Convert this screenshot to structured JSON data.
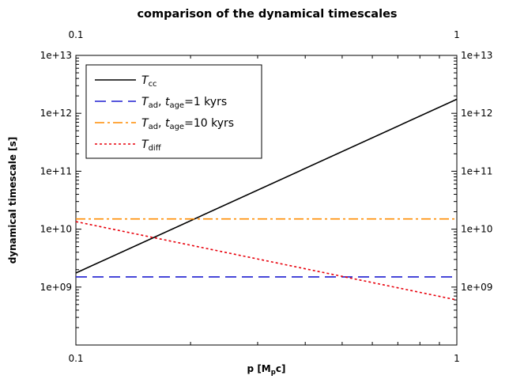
{
  "chart_data": {
    "type": "line",
    "title": "comparison of the dynamical timescales",
    "xlabel": "p [M",
    "xlabel_sub": "p",
    "xlabel_end": "c]",
    "ylabel": "dynamical timescale [s]",
    "xscale": "log",
    "yscale": "log",
    "xlim": [
      0.1,
      1
    ],
    "ylim": [
      100000000.0,
      10000000000000.0
    ],
    "x_ticks": [
      "0.1",
      "1"
    ],
    "x2_ticks": [
      "0.1",
      "1"
    ],
    "y_ticks": [
      "1e+09",
      "1e+10",
      "1e+11",
      "1e+12",
      "1e+13"
    ],
    "grid": false,
    "legend_position": "top-left",
    "series": [
      {
        "name": "T_cc",
        "label_parts": [
          [
            "T",
            "it"
          ],
          [
            "cc",
            "sub"
          ]
        ],
        "color": "#000000",
        "dash": "",
        "x": [
          0.1,
          1
        ],
        "y": [
          1750000000.0,
          1750000000000.0
        ]
      },
      {
        "name": "T_ad, t_age=1 kyrs",
        "label_parts": [
          [
            "T",
            "it"
          ],
          [
            "ad",
            "sub"
          ],
          [
            ", ",
            "n"
          ],
          [
            "t",
            "it"
          ],
          [
            "age",
            "sub"
          ],
          [
            "=1 kyrs",
            "n"
          ]
        ],
        "color": "#1f1fd0",
        "dash": "14,7",
        "x": [
          0.1,
          1
        ],
        "y": [
          1500000000.0,
          1500000000.0
        ]
      },
      {
        "name": "T_ad, t_age=10 kyrs",
        "label_parts": [
          [
            "T",
            "it"
          ],
          [
            "ad",
            "sub"
          ],
          [
            ", ",
            "n"
          ],
          [
            "t",
            "it"
          ],
          [
            "age",
            "sub"
          ],
          [
            "=10 kyrs",
            "n"
          ]
        ],
        "color": "#ff8c00",
        "dash": "12,4,3,4",
        "x": [
          0.1,
          1
        ],
        "y": [
          15000000000.0,
          15000000000.0
        ]
      },
      {
        "name": "T_diff",
        "label_parts": [
          [
            "T",
            "it"
          ],
          [
            "diff",
            "sub"
          ]
        ],
        "color": "#e8000b",
        "dash": "3,3",
        "x": [
          0.1,
          1
        ],
        "y": [
          13500000000.0,
          600000000.0
        ]
      }
    ]
  }
}
